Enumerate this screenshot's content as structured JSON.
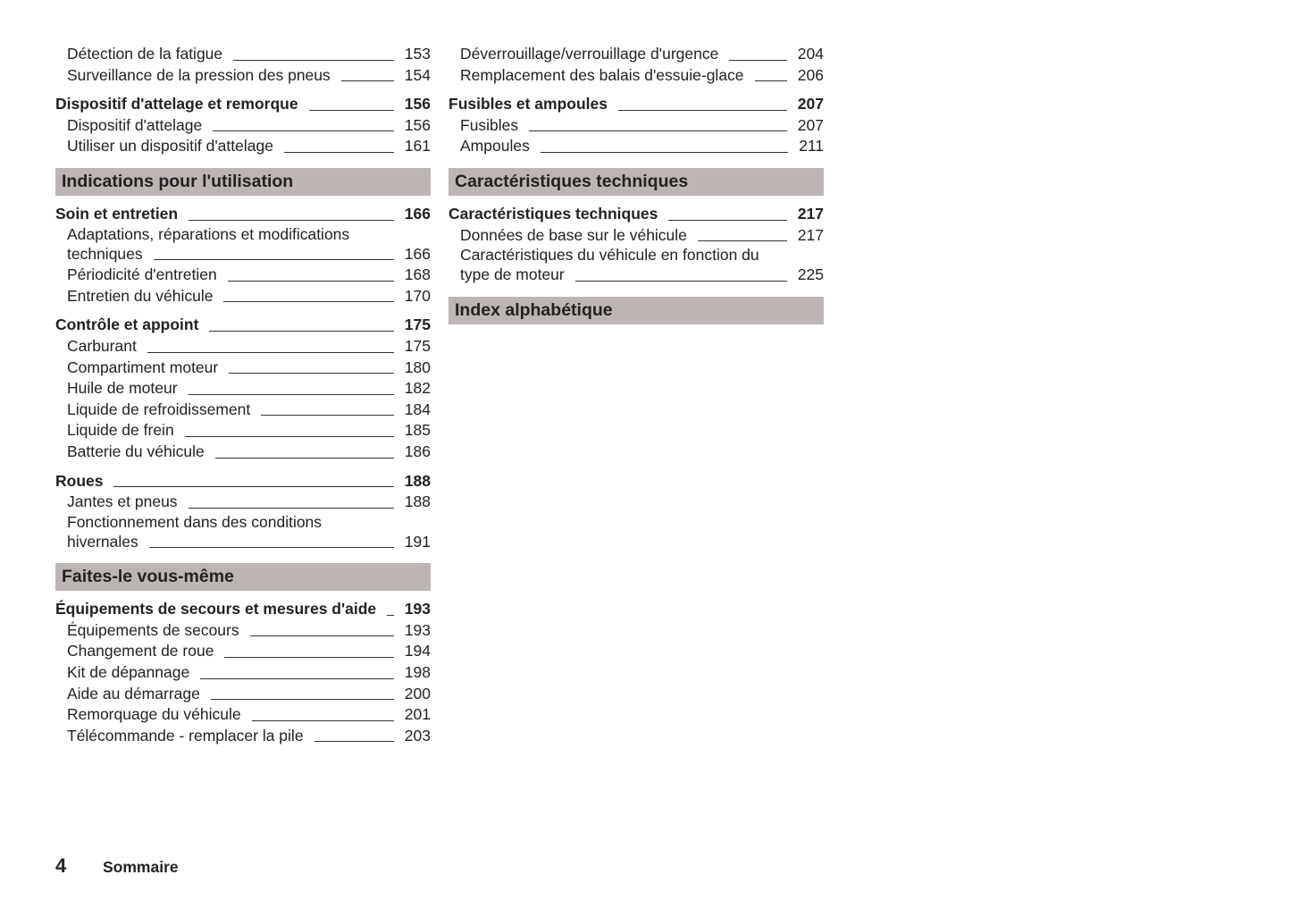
{
  "columns": [
    {
      "entries": [
        {
          "kind": "item",
          "lines": [
            "Détection de la fatigue"
          ],
          "page": "153"
        },
        {
          "kind": "item",
          "lines": [
            "Surveillance de la pression des pneus"
          ],
          "page": "154"
        },
        {
          "kind": "group",
          "lines": [
            "Dispositif d'attelage et remorque"
          ],
          "page": "156"
        },
        {
          "kind": "item",
          "lines": [
            "Dispositif d'attelage"
          ],
          "page": "156"
        },
        {
          "kind": "item",
          "lines": [
            "Utiliser un dispositif d'attelage"
          ],
          "page": "161"
        },
        {
          "kind": "section",
          "lines": [
            "Indications pour l'utilisation"
          ]
        },
        {
          "kind": "group",
          "lines": [
            "Soin et entretien"
          ],
          "page": "166"
        },
        {
          "kind": "item",
          "lines": [
            "Adaptations, réparations et modifications",
            "techniques"
          ],
          "page": "166"
        },
        {
          "kind": "item",
          "lines": [
            "Périodicité d'entretien"
          ],
          "page": "168"
        },
        {
          "kind": "item",
          "lines": [
            "Entretien du véhicule"
          ],
          "page": "170"
        },
        {
          "kind": "group",
          "lines": [
            "Contrôle et appoint"
          ],
          "page": "175"
        },
        {
          "kind": "item",
          "lines": [
            "Carburant"
          ],
          "page": "175"
        },
        {
          "kind": "item",
          "lines": [
            "Compartiment moteur"
          ],
          "page": "180"
        },
        {
          "kind": "item",
          "lines": [
            "Huile de moteur"
          ],
          "page": "182"
        },
        {
          "kind": "item",
          "lines": [
            "Liquide de refroidissement"
          ],
          "page": "184"
        },
        {
          "kind": "item",
          "lines": [
            "Liquide de frein"
          ],
          "page": "185"
        },
        {
          "kind": "item",
          "lines": [
            "Batterie du véhicule"
          ],
          "page": "186"
        },
        {
          "kind": "group",
          "lines": [
            "Roues"
          ],
          "page": "188"
        },
        {
          "kind": "item",
          "lines": [
            "Jantes et pneus"
          ],
          "page": "188"
        },
        {
          "kind": "item",
          "lines": [
            "Fonctionnement dans des conditions",
            "hivernales"
          ],
          "page": "191"
        },
        {
          "kind": "section",
          "lines": [
            "Faites-le vous-même"
          ]
        },
        {
          "kind": "group",
          "lines": [
            "Équipements de secours et mesures d'aide"
          ],
          "page": "193"
        },
        {
          "kind": "item",
          "lines": [
            "Équipements de secours"
          ],
          "page": "193"
        },
        {
          "kind": "item",
          "lines": [
            "Changement de roue"
          ],
          "page": "194"
        },
        {
          "kind": "item",
          "lines": [
            "Kit de dépannage"
          ],
          "page": "198"
        },
        {
          "kind": "item",
          "lines": [
            "Aide au démarrage"
          ],
          "page": "200"
        },
        {
          "kind": "item",
          "lines": [
            "Remorquage du véhicule"
          ],
          "page": "201"
        },
        {
          "kind": "item",
          "lines": [
            "Télécommande - remplacer la pile"
          ],
          "page": "203"
        }
      ]
    },
    {
      "entries": [
        {
          "kind": "item",
          "lines": [
            "Déverrouillage/verrouillage d'urgence"
          ],
          "page": "204"
        },
        {
          "kind": "item",
          "lines": [
            "Remplacement des balais d'essuie-glace"
          ],
          "page": "206"
        },
        {
          "kind": "group",
          "lines": [
            "Fusibles et ampoules"
          ],
          "page": "207"
        },
        {
          "kind": "item",
          "lines": [
            "Fusibles"
          ],
          "page": "207"
        },
        {
          "kind": "item",
          "lines": [
            "Ampoules"
          ],
          "page": "211"
        },
        {
          "kind": "section",
          "lines": [
            "Caractéristiques techniques"
          ]
        },
        {
          "kind": "group",
          "lines": [
            "Caractéristiques techniques"
          ],
          "page": "217"
        },
        {
          "kind": "item",
          "lines": [
            "Données de base sur le véhicule"
          ],
          "page": "217"
        },
        {
          "kind": "item",
          "lines": [
            "Caractéristiques du véhicule en fonction du",
            "type de moteur"
          ],
          "page": "225"
        },
        {
          "kind": "section",
          "lines": [
            "Index alphabétique"
          ]
        }
      ]
    }
  ],
  "footer": {
    "page_number": "4",
    "title": "Sommaire"
  }
}
